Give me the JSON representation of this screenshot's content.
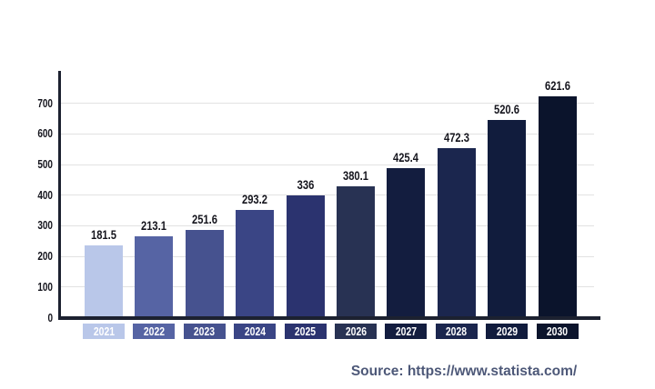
{
  "chart_data": {
    "type": "bar",
    "title": "",
    "xlabel": "",
    "ylabel": "",
    "categories": [
      "2021",
      "2022",
      "2023",
      "2024",
      "2025",
      "2026",
      "2027",
      "2028",
      "2029",
      "2030"
    ],
    "values": [
      181.5,
      213.1,
      251.6,
      293.2,
      336,
      380.1,
      425.4,
      472.3,
      520.6,
      621.6
    ],
    "value_labels": [
      "181.5",
      "213.1",
      "251.6",
      "293.2",
      "336",
      "380.1",
      "425.4",
      "472.3",
      "520.6",
      "621.6"
    ],
    "display_values": [
      235,
      267,
      285,
      353,
      400,
      430,
      487,
      552,
      644,
      724
    ],
    "y_ticks": [
      0,
      100,
      200,
      300,
      400,
      500,
      600,
      700
    ],
    "ylim": [
      0,
      760
    ],
    "grid": true,
    "legend": false,
    "bar_colors": [
      "#b9c7e9",
      "#5664a4",
      "#46528f",
      "#3a4585",
      "#2b336f",
      "#283253",
      "#131d3f",
      "#1b264e",
      "#111c3d",
      "#0b142c"
    ],
    "grid_color": "#e2e2e2",
    "axis_color": "#1c2130",
    "value_label_color": "#15151d",
    "tick_label_color": "#15151d",
    "year_label_text_color": "#ffffff"
  },
  "source": {
    "text": "Source: https://www.statista.com/",
    "color": "#4d5878"
  }
}
